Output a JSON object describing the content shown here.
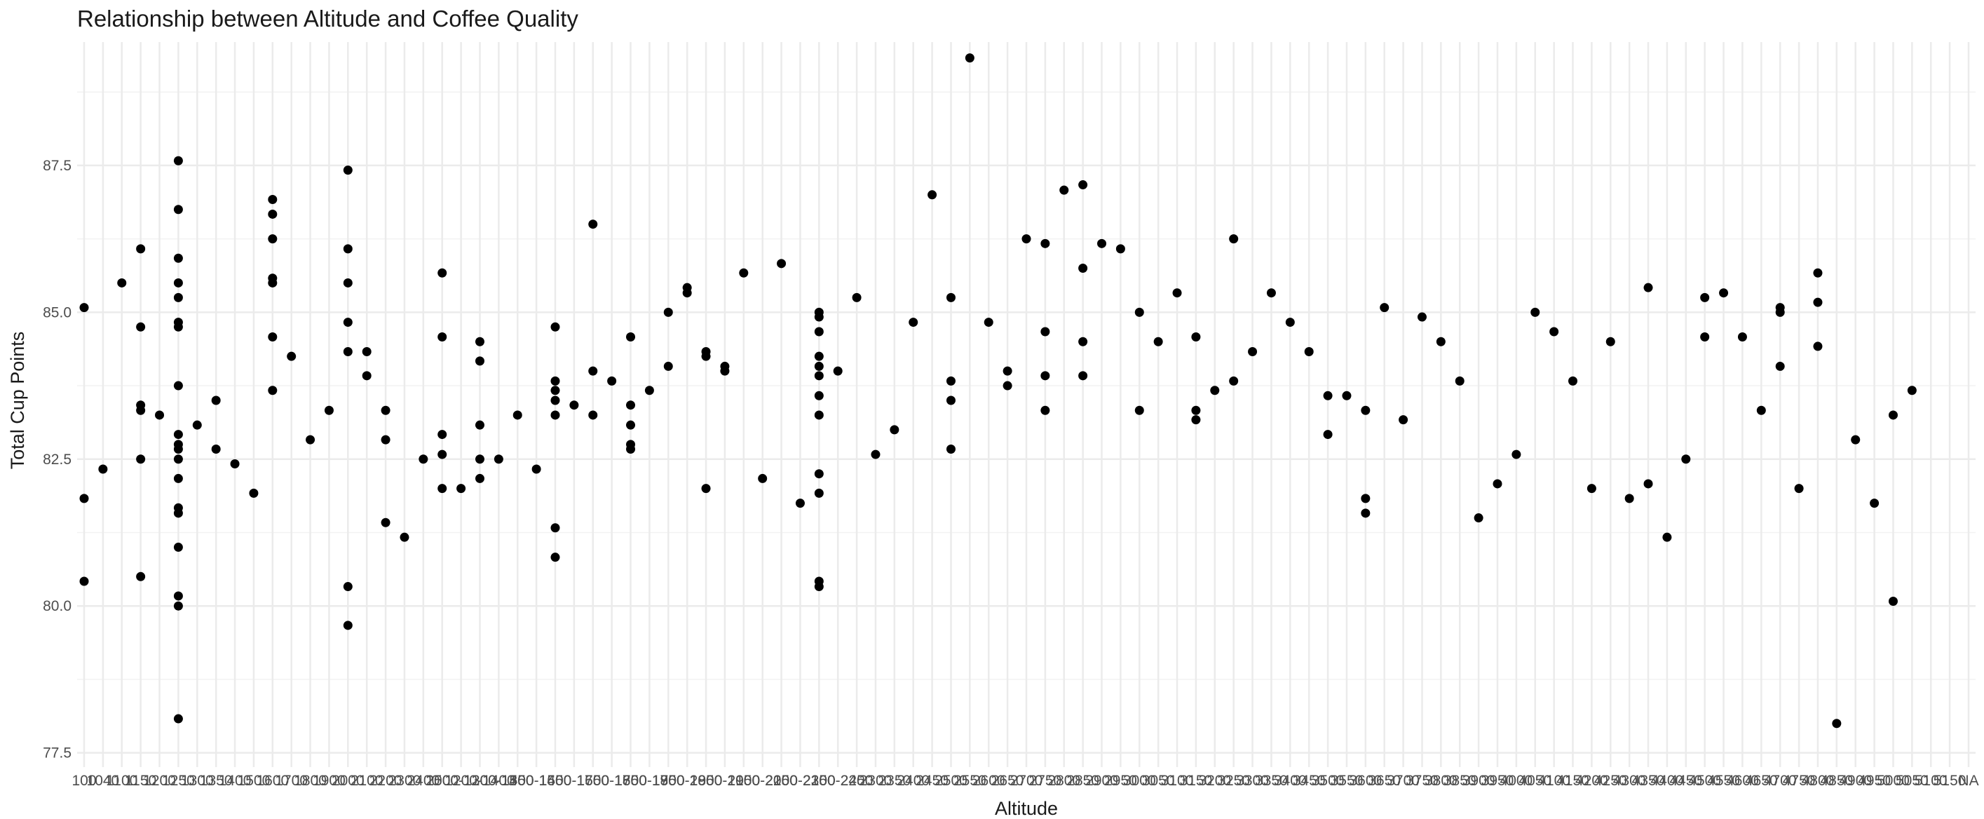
{
  "chart_data": {
    "type": "scatter",
    "title": "Relationship between Altitude and Coffee Quality",
    "xlabel": "Altitude",
    "ylabel": "Total Cup Points",
    "x_scale": "categorical",
    "ylim": [
      77.4,
      89.6
    ],
    "yticks": [
      77.5,
      80.0,
      82.5,
      85.0,
      87.5
    ],
    "ytick_labels": [
      "77.5",
      "80.0",
      "82.5",
      "85.0",
      "87.5"
    ],
    "grid": true,
    "legend": "none",
    "point_color": "#000000",
    "categories": [
      "100",
      "1040",
      "1100",
      "1150",
      "1200",
      "1250",
      "1300",
      "1350",
      "1400",
      "1500",
      "1600",
      "1700",
      "1800",
      "1900",
      "2000",
      "2100",
      "2200",
      "2300",
      "2400",
      "2500",
      "1000-1200",
      "1200-1400",
      "1300-1500",
      "1350",
      "1400-1600",
      "1450",
      "1500-1700",
      "1550",
      "1600-1800",
      "1650",
      "1700-1900",
      "1750",
      "1800-2000",
      "1850",
      "1900-2100",
      "1950",
      "2000-2200",
      "2050",
      "2100-2300",
      "2150",
      "2200-2400",
      "2250",
      "2300",
      "2350",
      "2400",
      "2450",
      "2500",
      "2550",
      "2600",
      "2650",
      "2700",
      "2750",
      "2800",
      "2850",
      "2900",
      "2950",
      "3000",
      "3050",
      "3100",
      "3150",
      "3200",
      "3250",
      "3300",
      "3350",
      "3400",
      "3450",
      "3500",
      "3550",
      "3600",
      "3650",
      "3700",
      "3750",
      "3800",
      "3850",
      "3900",
      "3950",
      "4000",
      "4050",
      "4100",
      "4150",
      "4200",
      "4250",
      "4300",
      "4350",
      "4400",
      "4450",
      "4500",
      "4550",
      "4600",
      "4650",
      "4700",
      "4750",
      "4800",
      "4850",
      "4900",
      "4950",
      "5000",
      "5050",
      "5100",
      "5150",
      "NA"
    ],
    "points": [
      [
        0,
        85.08
      ],
      [
        0,
        81.83
      ],
      [
        0,
        80.42
      ],
      [
        1,
        82.33
      ],
      [
        2,
        85.5
      ],
      [
        3,
        86.08
      ],
      [
        3,
        84.75
      ],
      [
        3,
        83.42
      ],
      [
        3,
        83.33
      ],
      [
        3,
        82.5
      ],
      [
        3,
        80.5
      ],
      [
        4,
        83.25
      ],
      [
        5,
        87.58
      ],
      [
        5,
        86.75
      ],
      [
        5,
        85.92
      ],
      [
        5,
        85.5
      ],
      [
        5,
        85.25
      ],
      [
        5,
        84.83
      ],
      [
        5,
        84.75
      ],
      [
        5,
        83.75
      ],
      [
        5,
        82.92
      ],
      [
        5,
        82.75
      ],
      [
        5,
        82.67
      ],
      [
        5,
        82.5
      ],
      [
        5,
        82.17
      ],
      [
        5,
        81.67
      ],
      [
        5,
        81.58
      ],
      [
        5,
        81.0
      ],
      [
        5,
        80.17
      ],
      [
        5,
        80.0
      ],
      [
        5,
        78.08
      ],
      [
        6,
        83.08
      ],
      [
        7,
        83.5
      ],
      [
        7,
        82.67
      ],
      [
        8,
        82.42
      ],
      [
        9,
        81.92
      ],
      [
        10,
        86.92
      ],
      [
        10,
        86.67
      ],
      [
        10,
        86.25
      ],
      [
        10,
        85.58
      ],
      [
        10,
        85.5
      ],
      [
        10,
        84.58
      ],
      [
        10,
        83.67
      ],
      [
        11,
        84.25
      ],
      [
        12,
        82.83
      ],
      [
        13,
        83.33
      ],
      [
        14,
        87.42
      ],
      [
        14,
        86.08
      ],
      [
        14,
        85.5
      ],
      [
        14,
        84.83
      ],
      [
        14,
        84.33
      ],
      [
        14,
        80.33
      ],
      [
        14,
        79.67
      ],
      [
        15,
        84.33
      ],
      [
        15,
        83.92
      ],
      [
        16,
        83.33
      ],
      [
        16,
        82.83
      ],
      [
        16,
        81.42
      ],
      [
        17,
        81.17
      ],
      [
        18,
        82.5
      ],
      [
        19,
        85.67
      ],
      [
        19,
        84.58
      ],
      [
        19,
        82.92
      ],
      [
        19,
        82.58
      ],
      [
        19,
        82.0
      ],
      [
        20,
        82.0
      ],
      [
        21,
        84.5
      ],
      [
        21,
        84.17
      ],
      [
        21,
        83.08
      ],
      [
        21,
        82.5
      ],
      [
        21,
        82.17
      ],
      [
        22,
        82.5
      ],
      [
        23,
        83.25
      ],
      [
        24,
        82.33
      ],
      [
        25,
        84.75
      ],
      [
        25,
        83.83
      ],
      [
        25,
        83.67
      ],
      [
        25,
        83.5
      ],
      [
        25,
        83.25
      ],
      [
        25,
        81.33
      ],
      [
        25,
        80.83
      ],
      [
        26,
        83.42
      ],
      [
        27,
        86.5
      ],
      [
        27,
        84.0
      ],
      [
        27,
        83.25
      ],
      [
        28,
        83.83
      ],
      [
        29,
        84.58
      ],
      [
        29,
        83.42
      ],
      [
        29,
        83.08
      ],
      [
        29,
        82.75
      ],
      [
        29,
        82.67
      ],
      [
        30,
        83.67
      ],
      [
        31,
        84.08
      ],
      [
        31,
        85.0
      ],
      [
        32,
        85.42
      ],
      [
        32,
        85.33
      ],
      [
        33,
        84.33
      ],
      [
        33,
        84.25
      ],
      [
        33,
        82.0
      ],
      [
        34,
        84.08
      ],
      [
        34,
        84.0
      ],
      [
        35,
        85.67
      ],
      [
        36,
        82.17
      ],
      [
        37,
        85.83
      ],
      [
        38,
        81.75
      ],
      [
        39,
        85.0
      ],
      [
        39,
        84.92
      ],
      [
        39,
        84.67
      ],
      [
        39,
        84.25
      ],
      [
        39,
        84.08
      ],
      [
        39,
        83.92
      ],
      [
        39,
        83.58
      ],
      [
        39,
        83.25
      ],
      [
        39,
        82.25
      ],
      [
        39,
        81.92
      ],
      [
        39,
        80.42
      ],
      [
        39,
        80.33
      ],
      [
        40,
        84.0
      ],
      [
        41,
        85.25
      ],
      [
        42,
        82.58
      ],
      [
        43,
        83.0
      ],
      [
        44,
        84.83
      ],
      [
        45,
        87.0
      ],
      [
        46,
        85.25
      ],
      [
        46,
        83.83
      ],
      [
        46,
        83.5
      ],
      [
        46,
        82.67
      ],
      [
        47,
        89.33
      ],
      [
        48,
        84.83
      ],
      [
        49,
        84.0
      ],
      [
        49,
        83.75
      ],
      [
        50,
        86.25
      ],
      [
        51,
        86.17
      ],
      [
        51,
        84.67
      ],
      [
        51,
        83.92
      ],
      [
        51,
        83.33
      ],
      [
        52,
        87.08
      ],
      [
        53,
        87.17
      ],
      [
        53,
        85.75
      ],
      [
        53,
        84.5
      ],
      [
        53,
        83.92
      ],
      [
        54,
        86.17
      ],
      [
        55,
        86.08
      ],
      [
        56,
        85.0
      ],
      [
        56,
        83.33
      ],
      [
        57,
        84.5
      ],
      [
        58,
        85.33
      ],
      [
        59,
        84.58
      ],
      [
        59,
        83.33
      ],
      [
        59,
        83.17
      ],
      [
        60,
        83.67
      ],
      [
        61,
        86.25
      ],
      [
        61,
        83.83
      ],
      [
        62,
        84.33
      ],
      [
        63,
        85.33
      ],
      [
        64,
        84.83
      ],
      [
        65,
        84.33
      ],
      [
        66,
        83.58
      ],
      [
        66,
        82.92
      ],
      [
        67,
        83.58
      ],
      [
        68,
        83.33
      ],
      [
        68,
        81.83
      ],
      [
        68,
        81.58
      ],
      [
        69,
        85.08
      ],
      [
        70,
        83.17
      ],
      [
        71,
        84.92
      ],
      [
        72,
        84.5
      ],
      [
        73,
        83.83
      ],
      [
        74,
        81.5
      ],
      [
        75,
        82.08
      ],
      [
        76,
        82.58
      ],
      [
        77,
        85.0
      ],
      [
        78,
        84.67
      ],
      [
        79,
        83.83
      ],
      [
        80,
        82.0
      ],
      [
        81,
        84.5
      ],
      [
        82,
        81.83
      ],
      [
        83,
        85.42
      ],
      [
        83,
        82.08
      ],
      [
        84,
        81.17
      ],
      [
        85,
        82.5
      ],
      [
        86,
        85.25
      ],
      [
        86,
        84.58
      ],
      [
        87,
        85.33
      ],
      [
        88,
        84.58
      ],
      [
        89,
        83.33
      ],
      [
        90,
        85.08
      ],
      [
        90,
        85.0
      ],
      [
        90,
        84.08
      ],
      [
        91,
        82.0
      ],
      [
        92,
        85.67
      ],
      [
        92,
        85.17
      ],
      [
        92,
        84.42
      ],
      [
        93,
        78.0
      ],
      [
        94,
        82.83
      ],
      [
        95,
        81.75
      ],
      [
        96,
        83.25
      ],
      [
        96,
        80.08
      ],
      [
        97,
        83.67
      ]
    ]
  }
}
